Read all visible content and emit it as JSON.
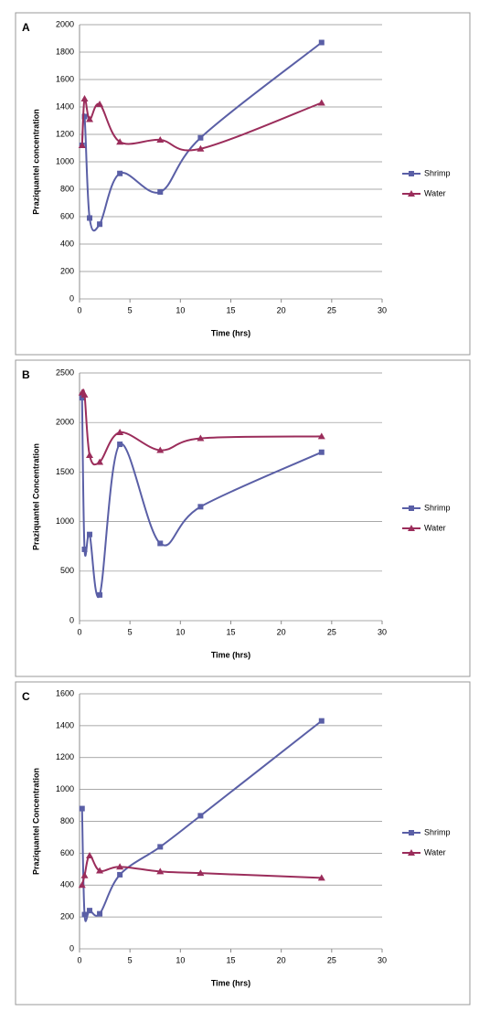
{
  "chart_data": [
    {
      "type": "line",
      "label": "A",
      "xlabel": "Time (hrs)",
      "ylabel": "Praziquantel concentration",
      "x": [
        0.25,
        0.5,
        1,
        2,
        4,
        8,
        12,
        24
      ],
      "series": [
        {
          "name": "Shrimp",
          "color": "#5a5fa6",
          "marker": "square",
          "values": [
            1120,
            1330,
            590,
            545,
            915,
            780,
            1175,
            1870
          ]
        },
        {
          "name": "Water",
          "color": "#9b2d5b",
          "marker": "triangle",
          "values": [
            1120,
            1460,
            1310,
            1420,
            1145,
            1160,
            1095,
            1430
          ]
        }
      ],
      "xlim": [
        0,
        30
      ],
      "xticks": [
        0,
        5,
        10,
        15,
        20,
        25,
        30
      ],
      "ylim": [
        0,
        2000
      ],
      "yticks": [
        0,
        200,
        400,
        600,
        800,
        1000,
        1200,
        1400,
        1600,
        1800,
        2000
      ],
      "grid": true,
      "legend": "right"
    },
    {
      "type": "line",
      "label": "B",
      "xlabel": "Time (hrs)",
      "ylabel": "Praziquantel Concentration",
      "x": [
        0.25,
        0.5,
        1,
        2,
        4,
        8,
        12,
        24
      ],
      "series": [
        {
          "name": "Shrimp",
          "color": "#5a5fa6",
          "marker": "square",
          "values": [
            2250,
            720,
            870,
            260,
            1780,
            780,
            1150,
            1700
          ]
        },
        {
          "name": "Water",
          "color": "#9b2d5b",
          "marker": "triangle",
          "values": [
            2300,
            2280,
            1670,
            1600,
            1900,
            1720,
            1840,
            1860
          ]
        }
      ],
      "xlim": [
        0,
        30
      ],
      "xticks": [
        0,
        5,
        10,
        15,
        20,
        25,
        30
      ],
      "ylim": [
        0,
        2500
      ],
      "yticks": [
        0,
        500,
        1000,
        1500,
        2000,
        2500
      ],
      "grid": true,
      "legend": "right"
    },
    {
      "type": "line",
      "label": "C",
      "xlabel": "Time (hrs)",
      "ylabel": "Praziquantel Concentration",
      "x": [
        0.25,
        0.5,
        1,
        2,
        4,
        8,
        12,
        24
      ],
      "series": [
        {
          "name": "Shrimp",
          "color": "#5a5fa6",
          "marker": "square",
          "values": [
            880,
            215,
            240,
            220,
            465,
            640,
            835,
            1430
          ]
        },
        {
          "name": "Water",
          "color": "#9b2d5b",
          "marker": "triangle",
          "values": [
            400,
            460,
            585,
            490,
            515,
            485,
            475,
            445
          ]
        }
      ],
      "xlim": [
        0,
        30
      ],
      "xticks": [
        0,
        5,
        10,
        15,
        20,
        25,
        30
      ],
      "ylim": [
        0,
        1600
      ],
      "yticks": [
        0,
        200,
        400,
        600,
        800,
        1000,
        1200,
        1400,
        1600
      ],
      "grid": true,
      "legend": "right"
    }
  ]
}
